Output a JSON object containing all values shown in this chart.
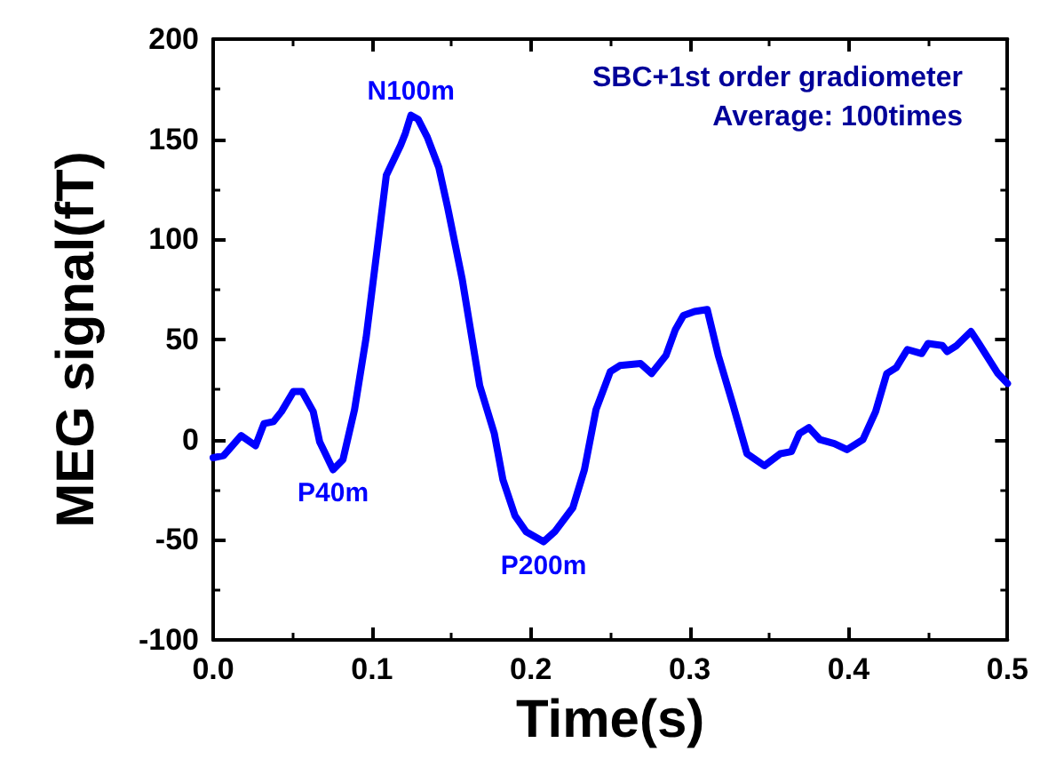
{
  "chart_data": {
    "type": "line",
    "xlabel": "Time(s)",
    "ylabel": "MEG signal(fT)",
    "xlim": [
      0,
      0.5
    ],
    "xticks": [
      {
        "value": 0,
        "label": "0.0"
      },
      0.1,
      0.2,
      0.3,
      0.4,
      0.5
    ],
    "ylim": [
      -100,
      200
    ],
    "yticks": [
      -100,
      -50,
      0,
      50,
      100,
      150,
      200
    ],
    "grid": false,
    "marker": "none",
    "line_style": "solid",
    "series": [
      {
        "color": "#0000ff",
        "x": [
          0,
          0.0066,
          0.0176,
          0.0267,
          0.032,
          0.038,
          0.043,
          0.0505,
          0.056,
          0.063,
          0.067,
          0.0755,
          0.0817,
          0.089,
          0.0963,
          0.1037,
          0.109,
          0.118,
          0.121,
          0.1245,
          0.129,
          0.1348,
          0.142,
          0.1476,
          0.1568,
          0.1678,
          0.177,
          0.1824,
          0.19,
          0.197,
          0.208,
          0.215,
          0.2264,
          0.2337,
          0.241,
          0.25,
          0.256,
          0.269,
          0.276,
          0.285,
          0.291,
          0.296,
          0.303,
          0.311,
          0.318,
          0.327,
          0.336,
          0.347,
          0.357,
          0.364,
          0.369,
          0.375,
          0.382,
          0.391,
          0.399,
          0.409,
          0.417,
          0.424,
          0.43,
          0.437,
          0.446,
          0.45,
          0.459,
          0.462,
          0.468,
          0.477,
          0.482,
          0.494,
          0.5
        ],
        "values": [
          -9,
          -8,
          2,
          -3,
          8,
          9,
          14,
          24,
          24,
          14,
          -1,
          -15,
          -10,
          15,
          51,
          98,
          132,
          147,
          153,
          162,
          160,
          151,
          136,
          116,
          80,
          27,
          3,
          -20,
          -38,
          -46,
          -51,
          -46,
          -34,
          -15,
          15,
          34,
          37,
          38,
          33,
          42,
          55,
          62,
          64,
          65,
          42,
          18,
          -7,
          -13,
          -7,
          -6,
          3,
          6,
          0,
          -2,
          -5,
          0,
          14,
          33,
          36,
          45,
          43,
          48,
          47,
          44,
          47,
          54,
          48,
          33,
          28
        ]
      }
    ],
    "annotations": [
      {
        "text": "N100m",
        "x": 0.1245,
        "y": 162
      },
      {
        "text": "P40m",
        "x": 0.0755,
        "y": -15
      },
      {
        "text": "P200m",
        "x": 0.208,
        "y": -51
      },
      "SBC+1st order gradiometer",
      "Average: 100times"
    ]
  }
}
